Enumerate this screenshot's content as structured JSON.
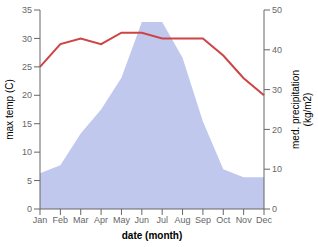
{
  "chart_data": {
    "type": "line",
    "categories": [
      "Jan",
      "Feb",
      "Mar",
      "Apr",
      "May",
      "Jun",
      "Jul",
      "Aug",
      "Sep",
      "Oct",
      "Nov",
      "Dec"
    ],
    "series": [
      {
        "type": "area",
        "axis": "y2",
        "color": "#c0c8ee",
        "values": [
          9,
          11,
          19,
          25,
          33,
          47,
          47,
          38,
          22,
          10,
          8,
          8
        ]
      },
      {
        "type": "line",
        "color": "#cc4444",
        "values": [
          25,
          29,
          30,
          29,
          31,
          31,
          30,
          30,
          30,
          27,
          23,
          20
        ]
      }
    ],
    "xlabel": "date (month)",
    "ylabel": "max temp (C)",
    "y2label": "med. precipitation\n(kg/m2)",
    "ylim": [
      0,
      35
    ],
    "yticks": [
      0,
      5,
      10,
      15,
      20,
      25,
      30,
      35
    ],
    "y2lim": [
      0,
      50
    ],
    "y2ticks": [
      0,
      10,
      20,
      30,
      40,
      50
    ],
    "grid": false
  }
}
